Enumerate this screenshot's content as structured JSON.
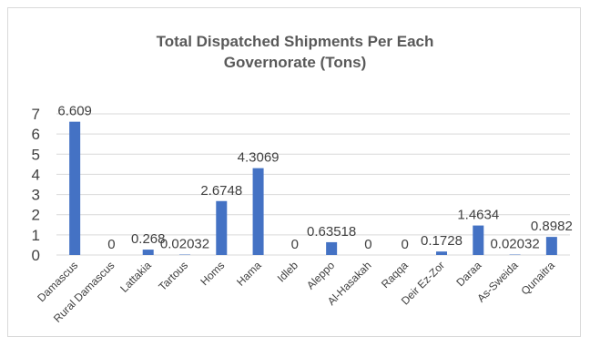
{
  "chart_data": {
    "type": "bar",
    "title_lines": [
      "Total Dispatched Shipments Per Each",
      "Governorate (Tons)"
    ],
    "categories": [
      "Damascus",
      "Rural Damascus",
      "Lattakia",
      "Tartous",
      "Homs",
      "Hama",
      "Idleb",
      "Aleppo",
      "Al-Hasakah",
      "Raqqa",
      "Deir Ez-Zor",
      "Daraa",
      "As-Sweida",
      "Qunaitra"
    ],
    "values": [
      6.609,
      0,
      0.268,
      0.02032,
      2.6748,
      4.3069,
      0,
      0.63518,
      0,
      0,
      0.1728,
      1.4634,
      0.02032,
      0.8982
    ],
    "data_labels": [
      "6.609",
      "0",
      "0.268",
      "0.02032",
      "2.6748",
      "4.3069",
      "0",
      "0.63518",
      "0",
      "0",
      "0.1728",
      "1.4634",
      "0.02032",
      "0.8982"
    ],
    "y_ticks": [
      "0",
      "1",
      "2",
      "3",
      "4",
      "5",
      "6",
      "7"
    ],
    "ylim": [
      0,
      7
    ],
    "grid": true,
    "bar_color": "#4472c4",
    "grid_color": "#d9d9d9"
  }
}
